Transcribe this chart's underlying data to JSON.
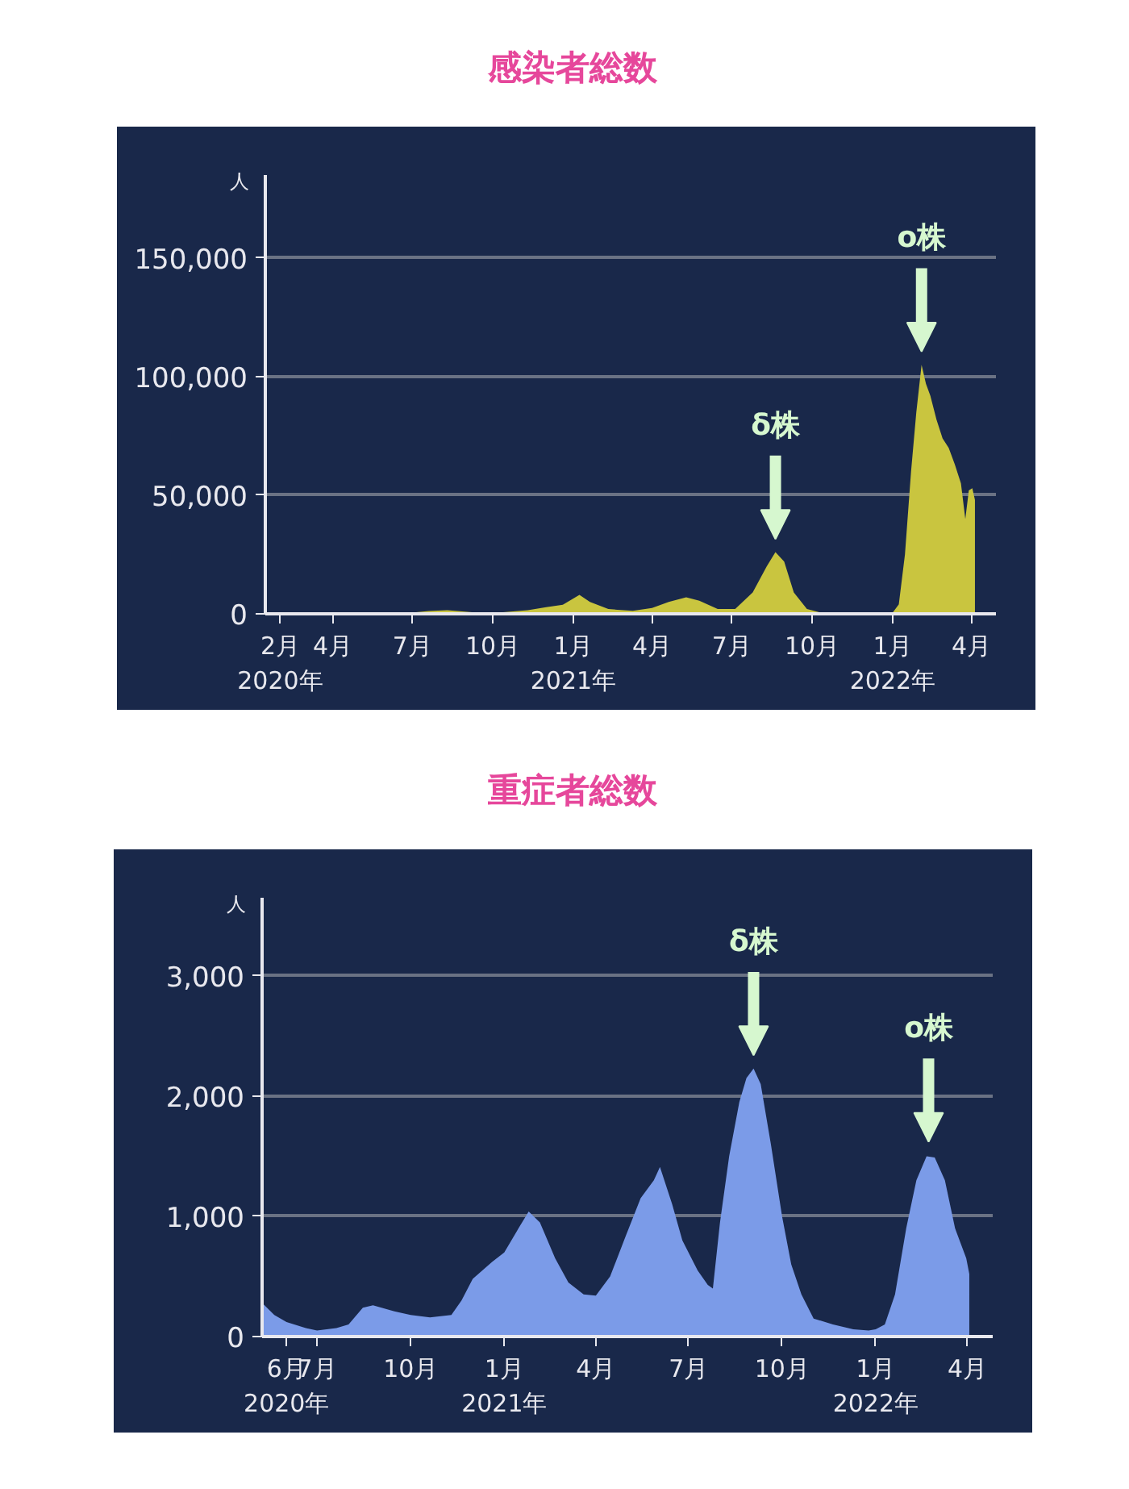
{
  "chart_data": [
    {
      "type": "area",
      "title": "感染者総数",
      "ylabel": "人",
      "grid": "y",
      "x": [
        "2020-01-15",
        "2020-03-20",
        "2020-04-10",
        "2020-04-25",
        "2020-05-20",
        "2020-06-20",
        "2020-07-20",
        "2020-08-10",
        "2020-09-10",
        "2020-10-10",
        "2020-11-10",
        "2020-12-01",
        "2020-12-20",
        "2021-01-08",
        "2021-01-20",
        "2021-02-10",
        "2021-03-10",
        "2021-04-01",
        "2021-04-20",
        "2021-05-10",
        "2021-05-25",
        "2021-06-15",
        "2021-07-05",
        "2021-07-25",
        "2021-08-10",
        "2021-08-20",
        "2021-08-30",
        "2021-09-10",
        "2021-09-25",
        "2021-10-10",
        "2021-11-10",
        "2021-12-10",
        "2022-01-01",
        "2022-01-08",
        "2022-01-15",
        "2022-01-22",
        "2022-01-28",
        "2022-02-03",
        "2022-02-08",
        "2022-02-13",
        "2022-02-20",
        "2022-02-27",
        "2022-03-06",
        "2022-03-13",
        "2022-03-20",
        "2022-03-25",
        "2022-03-29",
        "2022-04-02",
        "2022-04-05"
      ],
      "series": [
        {
          "color": "#c9c53f",
          "values": [
            0,
            100,
            600,
            700,
            200,
            100,
            1200,
            1500,
            600,
            600,
            1500,
            2800,
            3800,
            8000,
            5000,
            2000,
            1300,
            2500,
            5000,
            7000,
            5500,
            2000,
            2000,
            9000,
            20000,
            26000,
            22000,
            9000,
            2000,
            600,
            200,
            200,
            500,
            4000,
            25000,
            60000,
            85000,
            105000,
            97000,
            92000,
            82000,
            74000,
            70000,
            63000,
            55000,
            40000,
            52000,
            53000,
            48000
          ]
        }
      ],
      "xlim": [
        "2020-01-15",
        "2022-04-29"
      ],
      "xticks": [
        {
          "value": "2020-02-01",
          "label": "2月\n2020年"
        },
        {
          "value": "2020-04-01",
          "label": "4月"
        },
        {
          "value": "2020-07-01",
          "label": "7月"
        },
        {
          "value": "2020-10-01",
          "label": "10月"
        },
        {
          "value": "2021-01-01",
          "label": "1月\n2021年"
        },
        {
          "value": "2021-04-01",
          "label": "4月"
        },
        {
          "value": "2021-07-01",
          "label": "7月"
        },
        {
          "value": "2021-10-01",
          "label": "10月"
        },
        {
          "value": "2022-01-01",
          "label": "1月\n2022年"
        },
        {
          "value": "2022-04-01",
          "label": "4月"
        }
      ],
      "ylim": [
        0,
        185000
      ],
      "yticks": [
        0,
        {
          "value": 50000,
          "label": "50,000"
        },
        {
          "value": 100000,
          "label": "100,000"
        },
        {
          "value": 150000,
          "label": "150,000"
        }
      ],
      "annotations": [
        {
          "text": "δ株",
          "x": "2021-08-20",
          "y": 26000
        },
        {
          "text": "ο株",
          "x": "2022-02-03",
          "y": 105000
        }
      ]
    },
    {
      "type": "area",
      "title": "重症者総数",
      "ylabel": "人",
      "grid": "y",
      "x": [
        "2020-05-08",
        "2020-05-20",
        "2020-06-01",
        "2020-06-20",
        "2020-07-01",
        "2020-07-20",
        "2020-08-01",
        "2020-08-15",
        "2020-08-25",
        "2020-09-15",
        "2020-10-01",
        "2020-10-20",
        "2020-11-10",
        "2020-11-20",
        "2020-12-01",
        "2020-12-20",
        "2021-01-01",
        "2021-01-15",
        "2021-01-25",
        "2021-02-05",
        "2021-02-20",
        "2021-03-05",
        "2021-03-20",
        "2021-04-01",
        "2021-04-15",
        "2021-05-01",
        "2021-05-15",
        "2021-05-28",
        "2021-06-03",
        "2021-06-15",
        "2021-06-25",
        "2021-07-10",
        "2021-07-20",
        "2021-07-25",
        "2021-08-01",
        "2021-08-10",
        "2021-08-20",
        "2021-08-27",
        "2021-09-03",
        "2021-09-10",
        "2021-09-20",
        "2021-10-01",
        "2021-10-10",
        "2021-10-20",
        "2021-11-01",
        "2021-11-20",
        "2021-12-10",
        "2021-12-25",
        "2022-01-01",
        "2022-01-10",
        "2022-01-20",
        "2022-01-31",
        "2022-02-10",
        "2022-02-20",
        "2022-02-28",
        "2022-03-10",
        "2022-03-20",
        "2022-03-31",
        "2022-04-03"
      ],
      "series": [
        {
          "color": "#7b9be8",
          "values": [
            280,
            180,
            120,
            70,
            50,
            70,
            100,
            240,
            260,
            210,
            180,
            160,
            180,
            300,
            480,
            620,
            700,
            900,
            1040,
            950,
            650,
            450,
            350,
            340,
            500,
            850,
            1150,
            1300,
            1410,
            1100,
            800,
            550,
            430,
            400,
            950,
            1500,
            1950,
            2150,
            2230,
            2100,
            1600,
            1000,
            600,
            350,
            150,
            100,
            60,
            50,
            60,
            100,
            350,
            900,
            1300,
            1500,
            1490,
            1300,
            900,
            650,
            520
          ]
        }
      ],
      "xlim": [
        "2020-05-08",
        "2022-04-26"
      ],
      "xticks": [
        {
          "value": "2020-06-01",
          "label": "6月\n2020年"
        },
        {
          "value": "2020-07-01",
          "label": "7月"
        },
        {
          "value": "2020-10-01",
          "label": "10月"
        },
        {
          "value": "2021-01-01",
          "label": "1月\n2021年"
        },
        {
          "value": "2021-04-01",
          "label": "4月"
        },
        {
          "value": "2021-07-01",
          "label": "7月"
        },
        {
          "value": "2021-10-01",
          "label": "10月"
        },
        {
          "value": "2022-01-01",
          "label": "1月\n2022年"
        },
        {
          "value": "2022-04-01",
          "label": "4月"
        }
      ],
      "ylim": [
        0,
        3650
      ],
      "yticks": [
        0,
        {
          "value": 1000,
          "label": "1,000"
        },
        {
          "value": 2000,
          "label": "2,000"
        },
        {
          "value": 3000,
          "label": "3,000"
        }
      ],
      "annotations": [
        {
          "text": "δ株",
          "x": "2021-09-03",
          "y": 2230
        },
        {
          "text": "ο株",
          "x": "2022-02-22",
          "y": 1510
        }
      ]
    }
  ]
}
